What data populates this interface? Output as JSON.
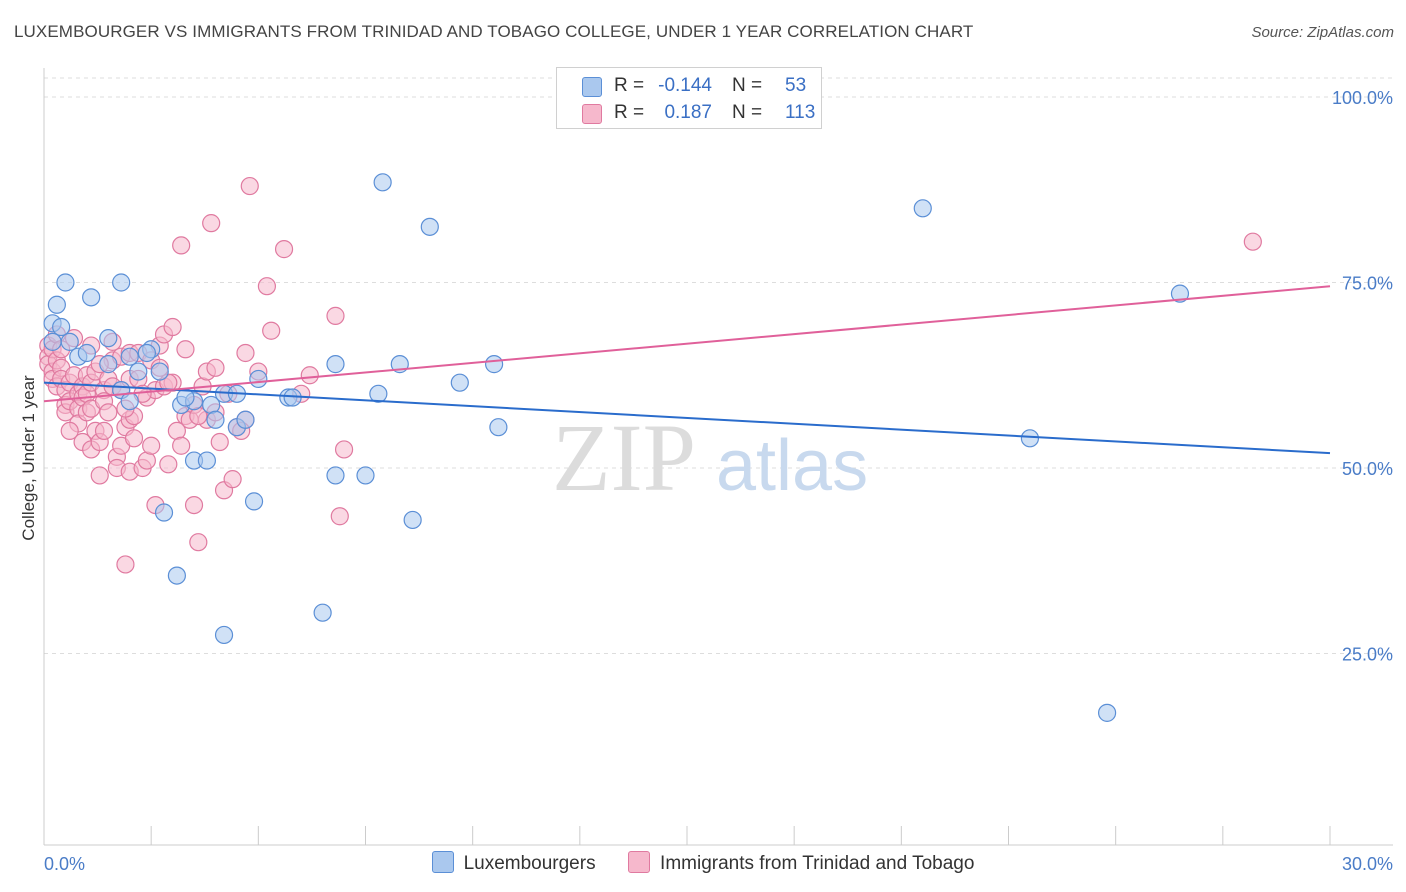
{
  "title": "LUXEMBOURGER VS IMMIGRANTS FROM TRINIDAD AND TOBAGO COLLEGE, UNDER 1 YEAR CORRELATION CHART",
  "source": "Source: ZipAtlas.com",
  "watermark": {
    "zip": "ZIP",
    "atlas": "atlas"
  },
  "stats": [
    {
      "r_label": "R =",
      "r_value": "-0.144",
      "n_label": "N =",
      "n_value": "53"
    },
    {
      "r_label": "R =",
      "r_value": "0.187",
      "n_label": "N =",
      "n_value": "113"
    }
  ],
  "colors": {
    "blue_fill": "#aac8ee",
    "blue_stroke": "#5b8fd6",
    "blue_line": "#2a6ccc",
    "pink_fill": "#f6b8cc",
    "pink_stroke": "#e07aa0",
    "pink_line": "#e0609a",
    "grid": "#dddddd",
    "tick_label": "#4a7cc7"
  },
  "chart_data": {
    "type": "scatter",
    "xlabel": "",
    "ylabel": "College, Under 1 year",
    "xlim": [
      0,
      30
    ],
    "ylim": [
      0,
      105
    ],
    "x_tick_labels": [
      {
        "value": 0,
        "label": "0.0%"
      },
      {
        "value": 30,
        "label": "30.0%"
      }
    ],
    "y_tick_labels": [
      {
        "value": 25,
        "label": "25.0%"
      },
      {
        "value": 50,
        "label": "50.0%"
      },
      {
        "value": 75,
        "label": "75.0%"
      },
      {
        "value": 100,
        "label": "100.0%"
      }
    ],
    "grid": true,
    "legend_position": "bottom-center",
    "series": [
      {
        "name": "Luxembourgers",
        "color": "#aac8ee",
        "r": -0.144,
        "n": 53,
        "trend": {
          "x0": 0,
          "y0": 61.5,
          "x1": 30,
          "y1": 52.0
        },
        "points": [
          [
            0.2,
            69.5
          ],
          [
            0.3,
            72.0
          ],
          [
            0.4,
            69.0
          ],
          [
            0.5,
            75.0
          ],
          [
            0.6,
            67.0
          ],
          [
            0.8,
            65.0
          ],
          [
            1.1,
            73.0
          ],
          [
            1.0,
            65.5
          ],
          [
            1.5,
            67.5
          ],
          [
            1.5,
            64.0
          ],
          [
            1.8,
            75.0
          ],
          [
            1.8,
            60.5
          ],
          [
            2.0,
            59.0
          ],
          [
            2.2,
            63.0
          ],
          [
            2.5,
            66.0
          ],
          [
            2.4,
            65.5
          ],
          [
            2.7,
            63.0
          ],
          [
            2.8,
            44.0
          ],
          [
            3.1,
            35.5
          ],
          [
            3.2,
            58.5
          ],
          [
            3.5,
            59.0
          ],
          [
            3.5,
            51.0
          ],
          [
            3.8,
            51.0
          ],
          [
            3.9,
            58.5
          ],
          [
            4.0,
            56.5
          ],
          [
            4.2,
            60.0
          ],
          [
            4.2,
            27.5
          ],
          [
            4.5,
            55.5
          ],
          [
            4.5,
            60.0
          ],
          [
            4.7,
            56.5
          ],
          [
            4.9,
            45.5
          ],
          [
            5.0,
            62.0
          ],
          [
            5.7,
            59.5
          ],
          [
            5.8,
            59.5
          ],
          [
            6.5,
            30.5
          ],
          [
            6.8,
            64.0
          ],
          [
            6.8,
            49.0
          ],
          [
            7.5,
            49.0
          ],
          [
            7.8,
            60.0
          ],
          [
            7.9,
            88.5
          ],
          [
            8.3,
            64.0
          ],
          [
            8.6,
            43.0
          ],
          [
            9.0,
            82.5
          ],
          [
            9.7,
            61.5
          ],
          [
            10.5,
            64.0
          ],
          [
            10.6,
            55.5
          ],
          [
            20.5,
            85.0
          ],
          [
            23.0,
            54.0
          ],
          [
            24.8,
            17.0
          ],
          [
            26.5,
            73.5
          ],
          [
            3.3,
            59.5
          ],
          [
            0.2,
            67.0
          ],
          [
            2.0,
            65.0
          ]
        ]
      },
      {
        "name": "Immigrants from Trinidad and Tobago",
        "color": "#f6b8cc",
        "r": 0.187,
        "n": 113,
        "trend": {
          "x0": 0,
          "y0": 59.0,
          "x1": 30,
          "y1": 74.5
        },
        "points": [
          [
            0.1,
            66.5
          ],
          [
            0.1,
            65.0
          ],
          [
            0.1,
            64.0
          ],
          [
            0.2,
            63.0
          ],
          [
            0.2,
            66.0
          ],
          [
            0.2,
            62.0
          ],
          [
            0.3,
            64.5
          ],
          [
            0.3,
            61.0
          ],
          [
            0.4,
            63.5
          ],
          [
            0.4,
            62.0
          ],
          [
            0.5,
            60.5
          ],
          [
            0.5,
            58.5
          ],
          [
            0.5,
            57.5
          ],
          [
            0.6,
            61.5
          ],
          [
            0.6,
            59.0
          ],
          [
            0.7,
            67.5
          ],
          [
            0.7,
            62.5
          ],
          [
            0.8,
            60.0
          ],
          [
            0.8,
            58.0
          ],
          [
            0.8,
            56.0
          ],
          [
            0.9,
            61.0
          ],
          [
            0.9,
            59.5
          ],
          [
            0.9,
            53.5
          ],
          [
            1.0,
            62.5
          ],
          [
            1.0,
            60.0
          ],
          [
            1.0,
            57.5
          ],
          [
            1.1,
            66.5
          ],
          [
            1.1,
            61.5
          ],
          [
            1.1,
            58.0
          ],
          [
            1.1,
            52.5
          ],
          [
            1.2,
            63.0
          ],
          [
            1.2,
            55.0
          ],
          [
            1.3,
            49.0
          ],
          [
            1.3,
            53.5
          ],
          [
            1.4,
            60.5
          ],
          [
            1.4,
            59.0
          ],
          [
            1.4,
            55.0
          ],
          [
            1.5,
            62.0
          ],
          [
            1.5,
            57.5
          ],
          [
            1.6,
            67.0
          ],
          [
            1.6,
            64.5
          ],
          [
            1.6,
            61.0
          ],
          [
            1.7,
            51.5
          ],
          [
            1.7,
            50.0
          ],
          [
            1.8,
            65.0
          ],
          [
            1.8,
            60.5
          ],
          [
            1.8,
            53.0
          ],
          [
            1.9,
            37.0
          ],
          [
            1.9,
            55.5
          ],
          [
            2.0,
            65.5
          ],
          [
            2.0,
            62.0
          ],
          [
            2.0,
            56.5
          ],
          [
            2.0,
            49.5
          ],
          [
            2.1,
            57.0
          ],
          [
            2.1,
            54.0
          ],
          [
            2.2,
            65.5
          ],
          [
            2.2,
            62.0
          ],
          [
            2.3,
            50.0
          ],
          [
            2.4,
            59.5
          ],
          [
            2.4,
            51.0
          ],
          [
            2.5,
            64.5
          ],
          [
            2.5,
            53.0
          ],
          [
            2.6,
            60.5
          ],
          [
            2.6,
            45.0
          ],
          [
            2.7,
            66.5
          ],
          [
            2.7,
            63.5
          ],
          [
            2.8,
            68.0
          ],
          [
            2.8,
            61.0
          ],
          [
            2.9,
            50.5
          ],
          [
            3.0,
            69.0
          ],
          [
            3.0,
            61.5
          ],
          [
            3.1,
            55.0
          ],
          [
            3.2,
            80.0
          ],
          [
            3.2,
            53.0
          ],
          [
            3.3,
            66.0
          ],
          [
            3.3,
            57.0
          ],
          [
            3.4,
            56.5
          ],
          [
            3.5,
            45.0
          ],
          [
            3.5,
            58.5
          ],
          [
            3.6,
            40.0
          ],
          [
            3.7,
            61.0
          ],
          [
            3.8,
            63.0
          ],
          [
            3.8,
            56.5
          ],
          [
            3.9,
            83.0
          ],
          [
            4.0,
            63.5
          ],
          [
            4.0,
            57.5
          ],
          [
            4.1,
            53.5
          ],
          [
            4.2,
            47.0
          ],
          [
            4.3,
            60.0
          ],
          [
            4.4,
            48.5
          ],
          [
            4.5,
            55.5
          ],
          [
            4.7,
            65.5
          ],
          [
            4.7,
            56.5
          ],
          [
            4.8,
            88.0
          ],
          [
            5.0,
            63.0
          ],
          [
            5.2,
            74.5
          ],
          [
            5.3,
            68.5
          ],
          [
            5.6,
            79.5
          ],
          [
            6.0,
            60.0
          ],
          [
            6.2,
            62.5
          ],
          [
            6.8,
            70.5
          ],
          [
            6.9,
            43.5
          ],
          [
            7.0,
            52.5
          ],
          [
            28.2,
            80.5
          ],
          [
            0.3,
            68.0
          ],
          [
            1.3,
            64.0
          ],
          [
            2.3,
            60.0
          ],
          [
            3.6,
            57.0
          ],
          [
            1.9,
            58.0
          ],
          [
            0.6,
            55.0
          ],
          [
            4.6,
            55.0
          ],
          [
            2.9,
            61.5
          ],
          [
            0.4,
            66.0
          ]
        ]
      }
    ]
  }
}
